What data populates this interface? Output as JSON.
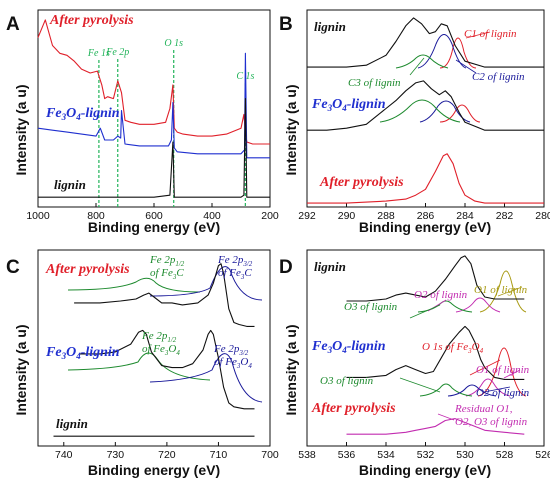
{
  "chart_data": [
    {
      "panel_label": "A",
      "type": "line",
      "xlabel": "Binding energy (eV)",
      "ylabel": "Intensity (a u)",
      "xlim": [
        1000,
        200
      ],
      "xticks": [
        1000,
        800,
        600,
        400,
        200
      ],
      "y_ticks_shown": false,
      "series": [
        {
          "name": "After pyrolysis",
          "color": "#e0202a",
          "x": [
            1000,
            975,
            950,
            925,
            900,
            875,
            850,
            820,
            795,
            780,
            770,
            760,
            740,
            725,
            712,
            700,
            680,
            650,
            600,
            560,
            545,
            535,
            530,
            520,
            500,
            450,
            400,
            350,
            300,
            290,
            285,
            280,
            260,
            230,
            200
          ],
          "y": [
            0.86,
            0.95,
            0.82,
            0.78,
            0.77,
            0.74,
            0.7,
            0.68,
            0.69,
            0.62,
            0.55,
            0.56,
            0.55,
            0.64,
            0.58,
            0.44,
            0.43,
            0.42,
            0.42,
            0.43,
            0.5,
            0.62,
            0.4,
            0.38,
            0.37,
            0.36,
            0.36,
            0.37,
            0.4,
            0.47,
            0.38,
            0.33,
            0.32,
            0.32,
            0.32
          ]
        },
        {
          "name": "Fe3O4-lignin",
          "color": "#1f2fcf",
          "x": [
            1000,
            950,
            900,
            850,
            800,
            785,
            770,
            740,
            725,
            715,
            712,
            700,
            650,
            600,
            550,
            540,
            535,
            530,
            520,
            450,
            400,
            350,
            300,
            288,
            285,
            280,
            250,
            200
          ],
          "y": [
            0.4,
            0.39,
            0.38,
            0.37,
            0.36,
            0.4,
            0.34,
            0.34,
            0.36,
            0.35,
            0.49,
            0.32,
            0.31,
            0.31,
            0.31,
            0.34,
            0.53,
            0.3,
            0.28,
            0.27,
            0.27,
            0.27,
            0.27,
            0.29,
            0.78,
            0.25,
            0.25,
            0.25
          ]
        },
        {
          "name": "lignin",
          "color": "#111111",
          "x": [
            1000,
            800,
            600,
            545,
            535,
            530,
            520,
            400,
            300,
            290,
            285,
            280,
            200
          ],
          "y": [
            0.05,
            0.05,
            0.05,
            0.06,
            0.33,
            0.05,
            0.05,
            0.05,
            0.05,
            0.06,
            0.55,
            0.05,
            0.05
          ]
        }
      ],
      "markers": [
        {
          "label": "Fe 1s",
          "x": 790
        },
        {
          "label": "Fe 2p",
          "x": 725
        },
        {
          "label": "O 1s",
          "x": 532
        },
        {
          "label": "C 1s",
          "x": 285
        }
      ],
      "annotations": [
        "After pyrolysis",
        "Fe3O4-lignin",
        "lignin"
      ]
    },
    {
      "panel_label": "B",
      "type": "line",
      "xlabel": "Binding energy (eV)",
      "ylabel": "Intensity (a u)",
      "xlim": [
        292,
        280
      ],
      "xticks": [
        292,
        290,
        288,
        286,
        284,
        282,
        280
      ],
      "y_ticks_shown": false,
      "series": [
        {
          "name": "lignin",
          "color": "#111111",
          "x": [
            292,
            291,
            290,
            289,
            288,
            287.5,
            287,
            286.6,
            286.2,
            285.8,
            285.5,
            285.2,
            284.9,
            284.5,
            284,
            283,
            282,
            281,
            280
          ],
          "y": [
            0.71,
            0.71,
            0.71,
            0.72,
            0.77,
            0.84,
            0.92,
            0.96,
            0.93,
            0.88,
            0.89,
            0.93,
            0.92,
            0.82,
            0.74,
            0.71,
            0.71,
            0.71,
            0.71
          ]
        },
        {
          "name": "Fe3O4-lignin",
          "color": "#111111",
          "x": [
            292,
            291,
            290,
            289,
            288.5,
            288,
            287.5,
            287,
            286.5,
            286.1,
            285.7,
            285.3,
            285,
            284.7,
            284.3,
            284,
            283,
            282,
            281,
            280
          ],
          "y": [
            0.39,
            0.39,
            0.4,
            0.42,
            0.46,
            0.5,
            0.54,
            0.59,
            0.63,
            0.64,
            0.6,
            0.57,
            0.59,
            0.56,
            0.48,
            0.43,
            0.39,
            0.39,
            0.39,
            0.39
          ]
        },
        {
          "name": "After pyrolysis",
          "color": "#e0202a",
          "x": [
            292,
            290,
            288,
            287,
            286.5,
            286,
            285.5,
            285.1,
            284.9,
            284.6,
            284.3,
            284,
            283.5,
            283,
            282,
            280
          ],
          "y": [
            0.02,
            0.02,
            0.03,
            0.04,
            0.06,
            0.09,
            0.18,
            0.26,
            0.27,
            0.22,
            0.12,
            0.06,
            0.03,
            0.02,
            0.02,
            0.02
          ]
        }
      ],
      "annotations": [
        "C1 of lignin",
        "C2 of lignin",
        "C3 of lignin",
        "lignin",
        "Fe3O4-lignin",
        "After pyrolysis"
      ]
    },
    {
      "panel_label": "C",
      "type": "line",
      "xlabel": "Binding energy (eV)",
      "ylabel": "Intensity (a u)",
      "xlim": [
        745,
        700
      ],
      "xticks": [
        740,
        730,
        720,
        710,
        700
      ],
      "y_ticks_shown": false,
      "series": [
        {
          "name": "After pyrolysis",
          "color": "#111111",
          "x": [
            738,
            733,
            729,
            726,
            724.5,
            723.5,
            722.5,
            721,
            719,
            717,
            714,
            712,
            711,
            710,
            709.5,
            709,
            708,
            707,
            706,
            704.5,
            703
          ],
          "y": [
            0.73,
            0.73,
            0.74,
            0.75,
            0.77,
            0.78,
            0.76,
            0.73,
            0.73,
            0.72,
            0.73,
            0.77,
            0.83,
            0.92,
            0.93,
            0.88,
            0.7,
            0.63,
            0.62,
            0.61,
            0.61
          ]
        },
        {
          "name": "Fe3O4-lignin",
          "color": "#111111",
          "x": [
            737,
            733,
            730,
            727,
            725.5,
            724.7,
            724,
            723,
            721,
            719,
            717,
            715,
            713,
            712,
            711.5,
            711,
            710,
            709,
            708,
            707,
            705,
            703
          ],
          "y": [
            0.47,
            0.47,
            0.48,
            0.52,
            0.58,
            0.59,
            0.57,
            0.48,
            0.41,
            0.4,
            0.4,
            0.42,
            0.49,
            0.57,
            0.59,
            0.57,
            0.45,
            0.3,
            0.22,
            0.2,
            0.19,
            0.19
          ]
        },
        {
          "name": "lignin",
          "color": "#111111",
          "x": [
            742,
            720,
            703
          ],
          "y": [
            0.05,
            0.05,
            0.05
          ]
        }
      ],
      "annotations": [
        "After pyrolysis",
        "Fe 2p1/2 of Fe3C",
        "Fe 2p3/2 of Fe3C",
        "Fe3O4-lignin",
        "Fe 2p1/2 of Fe3O4",
        "Fe 2p3/2 of Fe3O4",
        "lignin"
      ]
    },
    {
      "panel_label": "D",
      "type": "line",
      "xlabel": "Binding energy (eV)",
      "ylabel": "Intensity (a u)",
      "xlim": [
        538,
        526
      ],
      "xticks": [
        538,
        536,
        534,
        532,
        530,
        528,
        526
      ],
      "y_ticks_shown": false,
      "series": [
        {
          "name": "lignin",
          "color": "#111111",
          "x": [
            536,
            535,
            534,
            533.5,
            533,
            532.5,
            532,
            531.5,
            531,
            530.5,
            530.2,
            530,
            529.7,
            529.4,
            529,
            528.5,
            528,
            527
          ],
          "y": [
            0.74,
            0.74,
            0.75,
            0.77,
            0.78,
            0.77,
            0.76,
            0.79,
            0.85,
            0.92,
            0.96,
            0.97,
            0.93,
            0.82,
            0.76,
            0.75,
            0.75,
            0.75
          ]
        },
        {
          "name": "Fe3O4-lignin",
          "color": "#111111",
          "x": [
            536,
            535,
            534,
            533.5,
            533,
            532.5,
            532,
            531.6,
            531.2,
            530.8,
            530.3,
            530,
            529.8,
            529.5,
            529.2,
            529,
            528.5,
            528,
            527
          ],
          "y": [
            0.35,
            0.35,
            0.36,
            0.39,
            0.41,
            0.39,
            0.37,
            0.38,
            0.45,
            0.52,
            0.58,
            0.61,
            0.59,
            0.53,
            0.44,
            0.4,
            0.35,
            0.34,
            0.34
          ]
        },
        {
          "name": "After pyrolysis",
          "color": "#c22cb0",
          "x": [
            536,
            535,
            534,
            533,
            532.5,
            532,
            531.5,
            531,
            530.5,
            530,
            529,
            528,
            527
          ],
          "y": [
            0.06,
            0.06,
            0.06,
            0.07,
            0.08,
            0.09,
            0.1,
            0.13,
            0.14,
            0.12,
            0.08,
            0.07,
            0.06
          ]
        }
      ],
      "annotations": [
        "lignin",
        "O2 of lignin",
        "O3 of lignin",
        "O1 of lignin",
        "Fe3O4-lignin",
        "O 1s of Fe3O4",
        "O1 of lignin",
        "O3 of lignin",
        "O2 of lignin",
        "After pyrolysis",
        "Residual O1,",
        "O2, O3 of lignin"
      ]
    }
  ],
  "text": {
    "axis_x": "Binding energy (eV)",
    "axis_y": "Intensity (a u)",
    "label_A": "A",
    "label_B": "B",
    "label_C": "C",
    "label_D": "D",
    "after_pyrolysis": "After pyrolysis",
    "lignin": "lignin",
    "fe3o4_main": "Fe",
    "fe3o4_sub3": "3",
    "fe3o4_o": "O",
    "fe3o4_sub4": "4",
    "fe3o4_tail": "-lignin",
    "fe1s": "Fe 1s",
    "fe2p": "Fe 2p",
    "o1s": "O 1s",
    "c1s": "C 1s",
    "c1": "C1 of lignin",
    "c2": "C2 of lignin",
    "c3": "C3 of lignin",
    "sub_1_2": "1/2",
    "sub_3_2": "3/2",
    "of_fe": "of Fe",
    "c_letter": "C",
    "of_fe3o4_o": "O",
    "o1": "O1 of lignin",
    "o2": "O2 of lignin",
    "o3": "O3 of lignin",
    "o1s_fe_pre": "O 1s of Fe",
    "residual_1": "Residual O1,",
    "residual_2": "O2, O3 of lignin"
  },
  "colors": {
    "red": "#e0202a",
    "blue": "#1f2fcf",
    "black": "#111111",
    "green_marker": "#22b35a",
    "green_fit": "#1d8a2e",
    "navy_fit": "#1a1a9a",
    "magenta": "#c22cb0",
    "olive": "#a89a12"
  }
}
